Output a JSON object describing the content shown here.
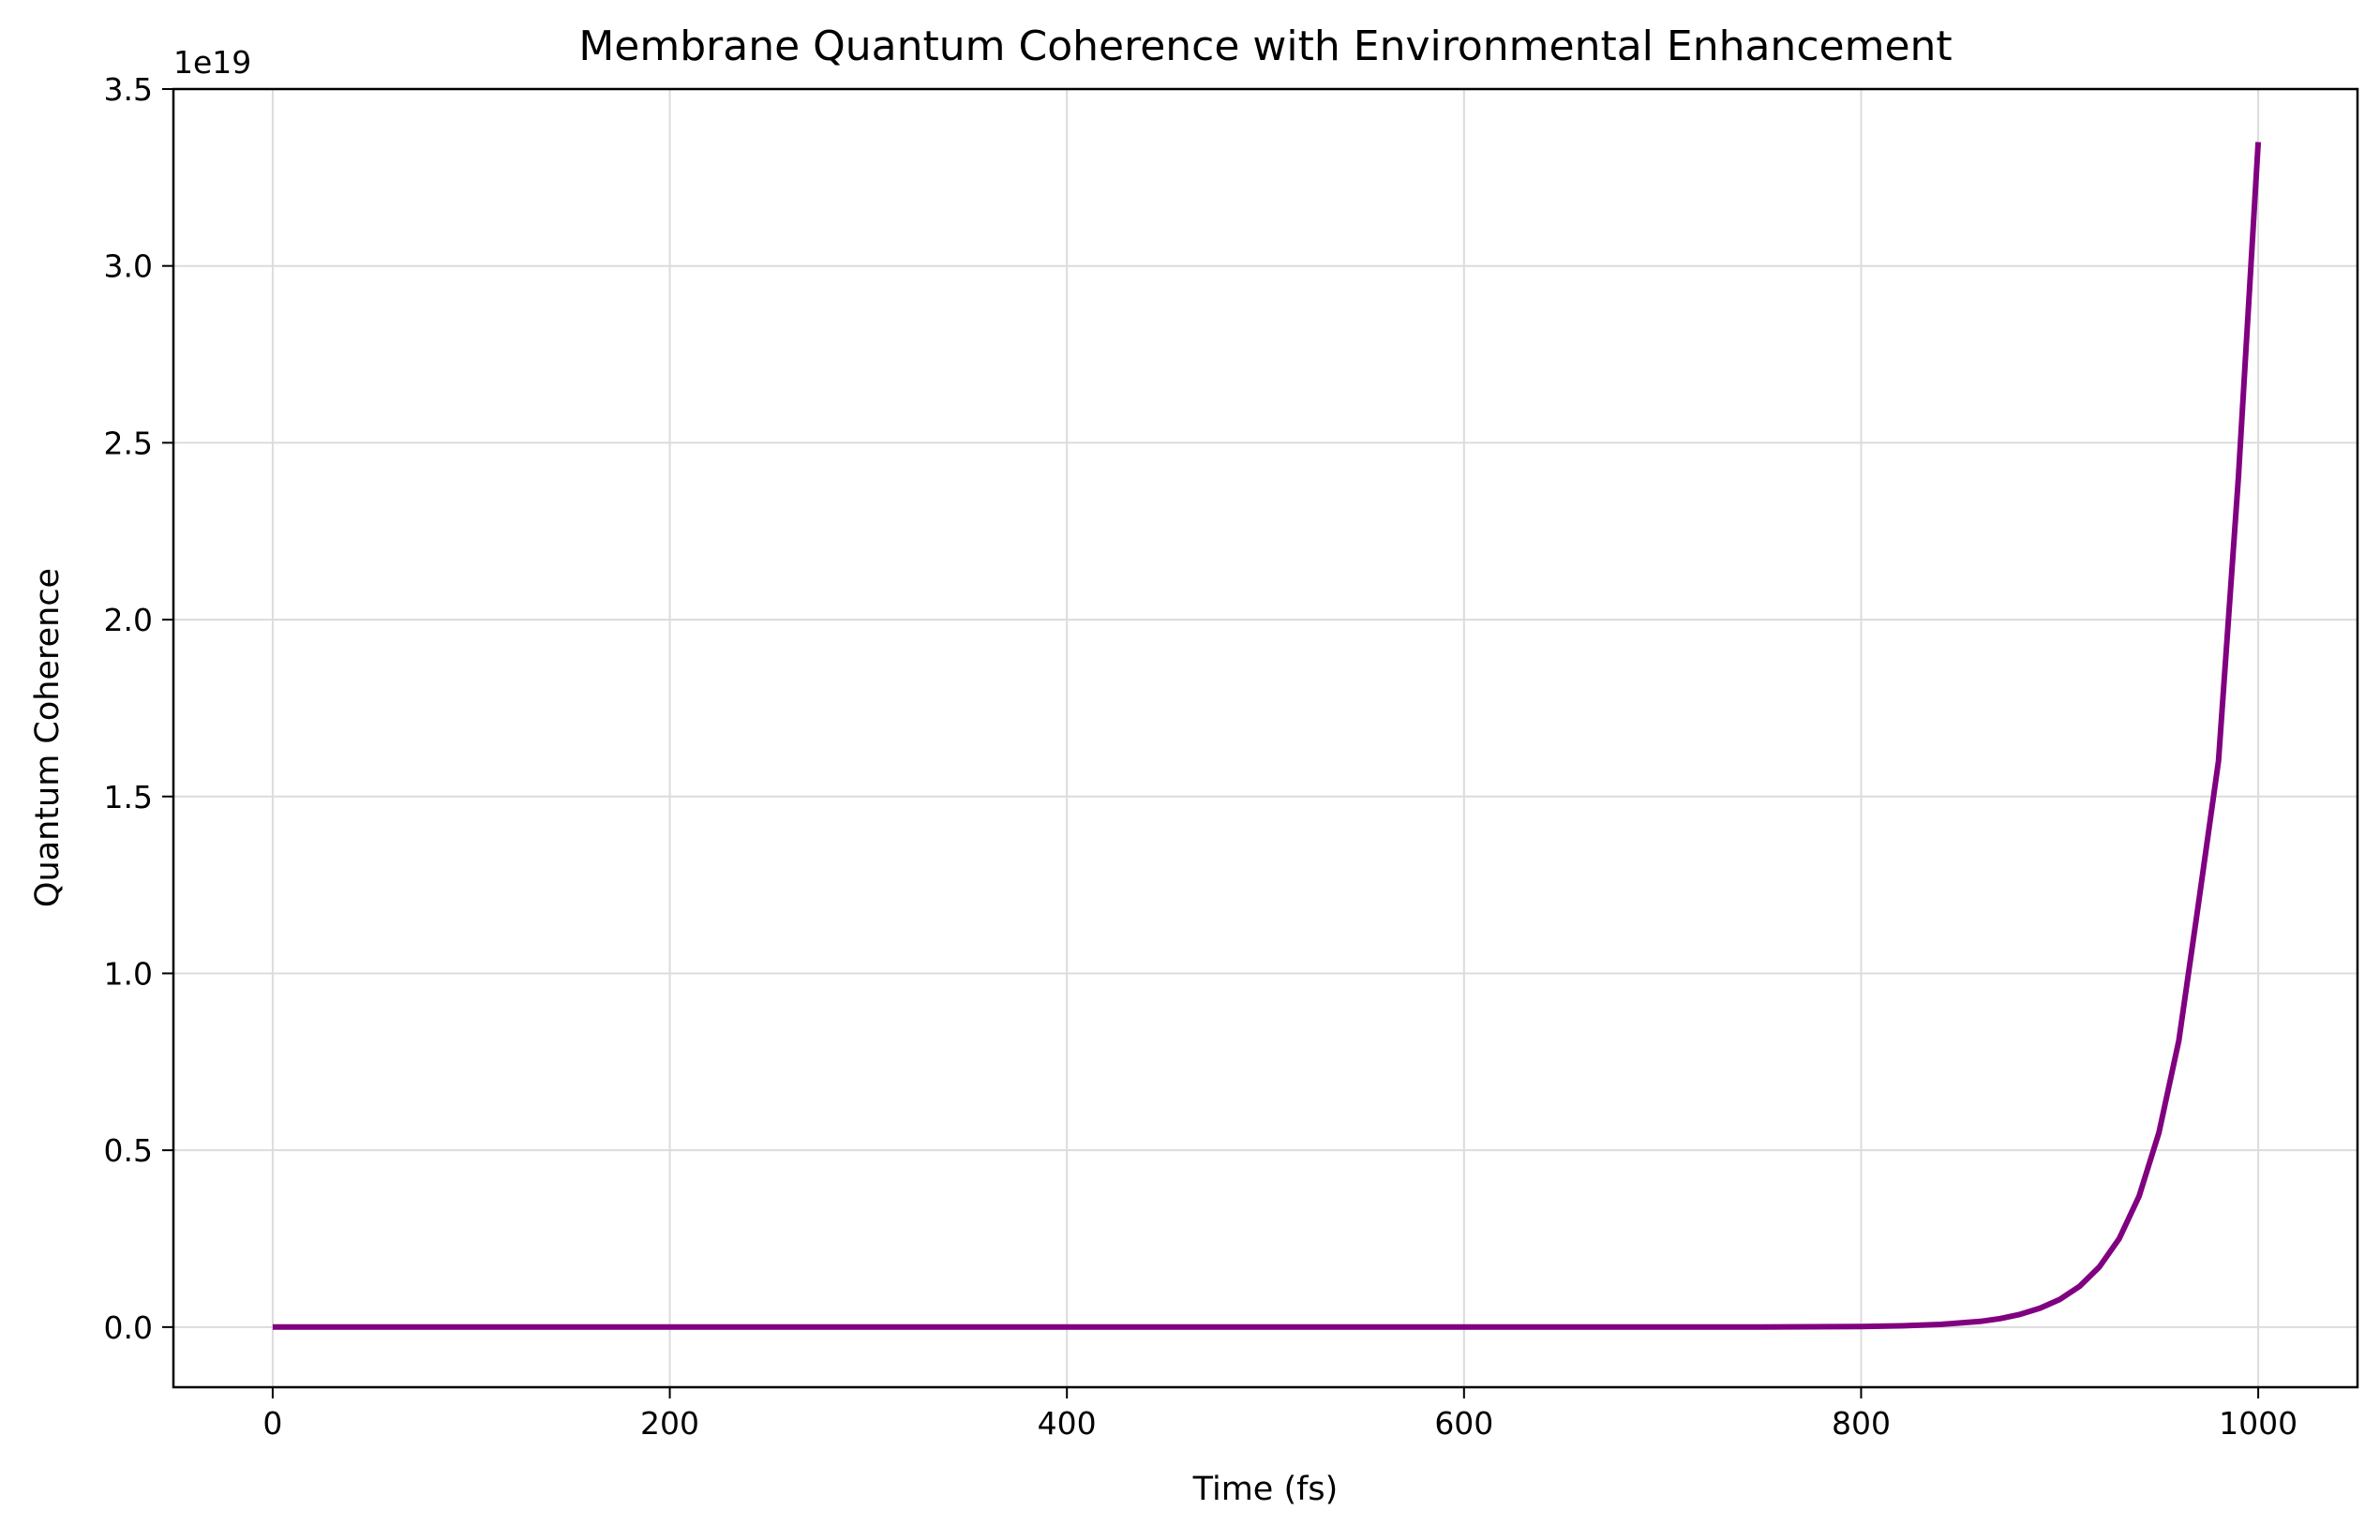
{
  "chart_data": {
    "type": "line",
    "title": "Membrane Quantum Coherence with Environmental Enhancement",
    "xlabel": "Time (fs)",
    "ylabel": "Quantum Coherence",
    "y_offset_label": "1e19",
    "xlim": [
      -50,
      1050
    ],
    "ylim": [
      -0.17,
      3.5
    ],
    "y_scale_multiplier": 1e+19,
    "x_ticks": [
      0,
      200,
      400,
      600,
      800,
      1000
    ],
    "x_tick_labels": [
      "0",
      "200",
      "400",
      "600",
      "800",
      "1000"
    ],
    "y_ticks": [
      0.0,
      0.5,
      1.0,
      1.5,
      2.0,
      2.5,
      3.0,
      3.5
    ],
    "y_tick_labels": [
      "0.0",
      "0.5",
      "1.0",
      "1.5",
      "2.0",
      "2.5",
      "3.0",
      "3.5"
    ],
    "grid": true,
    "series": [
      {
        "color": "#800080",
        "x": [
          0,
          100,
          200,
          300,
          400,
          500,
          600,
          700,
          750,
          800,
          820,
          840,
          860,
          870,
          880,
          890,
          900,
          910,
          920,
          930,
          940,
          950,
          960,
          970,
          980,
          990,
          1000
        ],
        "y": [
          0,
          0,
          0,
          0,
          0,
          0,
          0,
          0,
          0.0001,
          0.0015,
          0.0035,
          0.0075,
          0.016,
          0.024,
          0.036,
          0.053,
          0.078,
          0.115,
          0.17,
          0.25,
          0.37,
          0.55,
          0.81,
          1.2,
          1.6,
          2.4,
          3.35
        ]
      }
    ]
  }
}
